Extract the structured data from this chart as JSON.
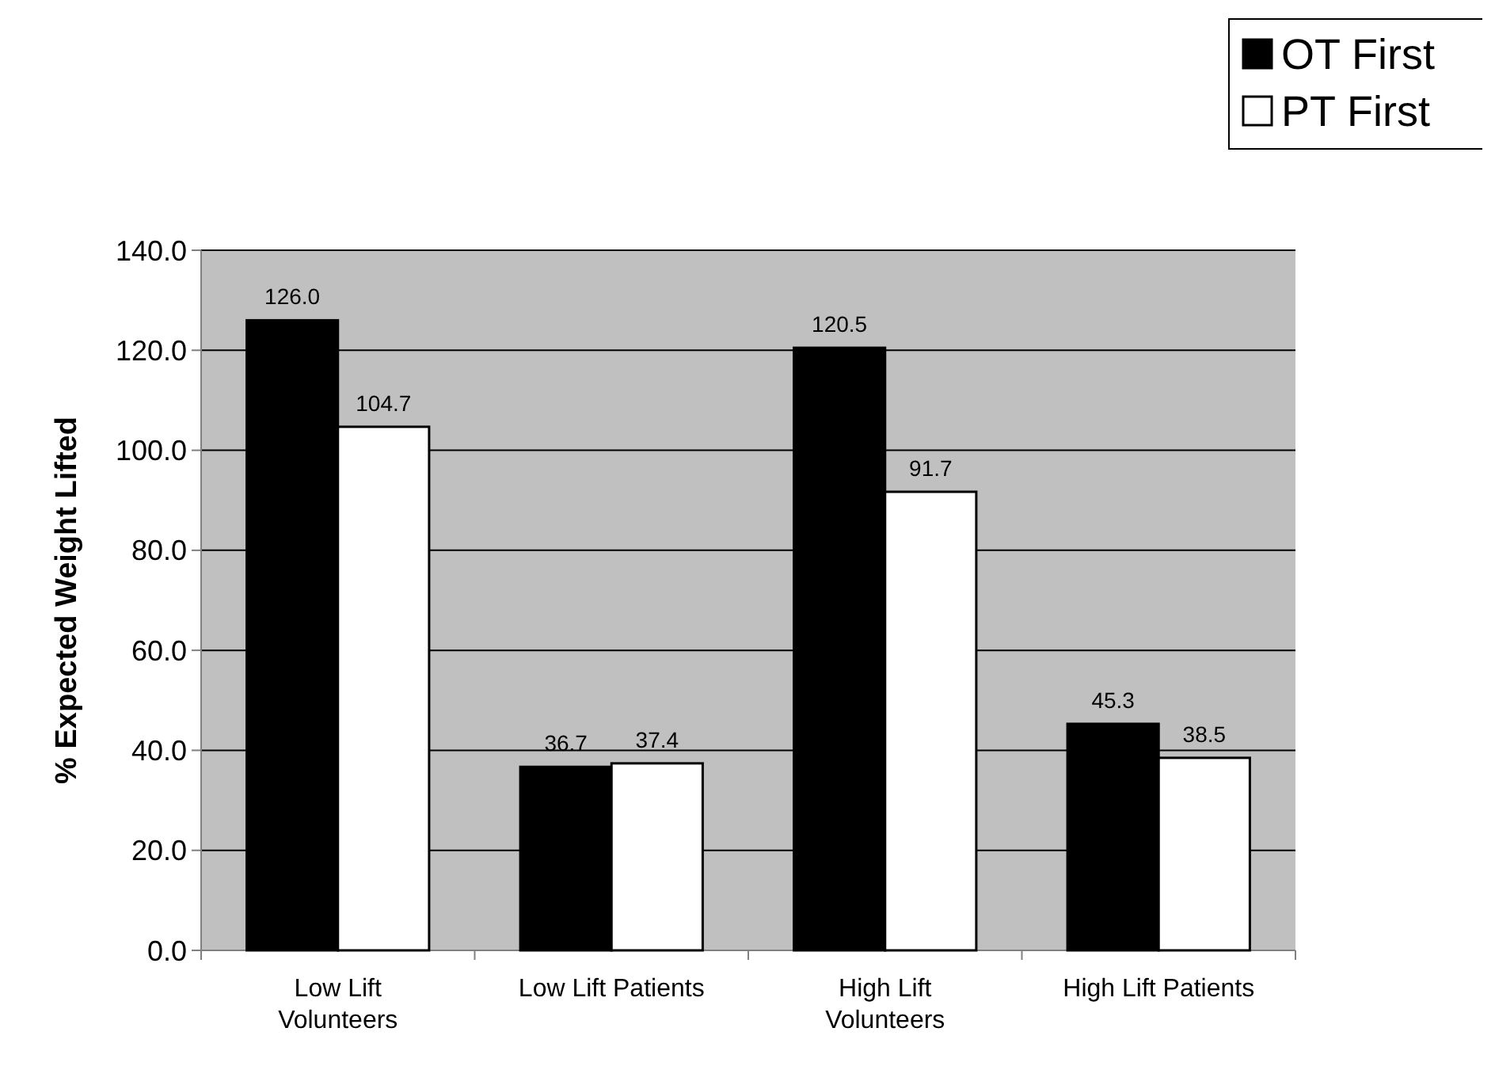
{
  "chart_data": {
    "type": "bar",
    "ylabel": "% Expected Weight Lifted",
    "categories": [
      "Low Lift Volunteers",
      "Low Lift Patients",
      "High Lift Volunteers",
      "High Lift Patients"
    ],
    "series": [
      {
        "name": "OT First",
        "color": "#000000",
        "values": [
          126.0,
          36.7,
          120.5,
          45.3
        ],
        "value_labels": [
          "126.0",
          "36.7",
          "120.5",
          "45.3"
        ]
      },
      {
        "name": "PT First",
        "color": "#ffffff",
        "values": [
          104.7,
          37.4,
          91.7,
          38.5
        ],
        "value_labels": [
          "104.7",
          "37.4",
          "91.7",
          "38.5"
        ]
      }
    ],
    "ylim": [
      0,
      140
    ],
    "yticks": [
      {
        "value": 0,
        "label": "0.0"
      },
      {
        "value": 20,
        "label": "20.0"
      },
      {
        "value": 40,
        "label": "40.0"
      },
      {
        "value": 60,
        "label": "60.0"
      },
      {
        "value": 80,
        "label": "80.0"
      },
      {
        "value": 100,
        "label": "100.0"
      },
      {
        "value": 120,
        "label": "120.0"
      },
      {
        "value": 140,
        "label": "140.0"
      }
    ],
    "grid": "y",
    "legend": "top right"
  }
}
